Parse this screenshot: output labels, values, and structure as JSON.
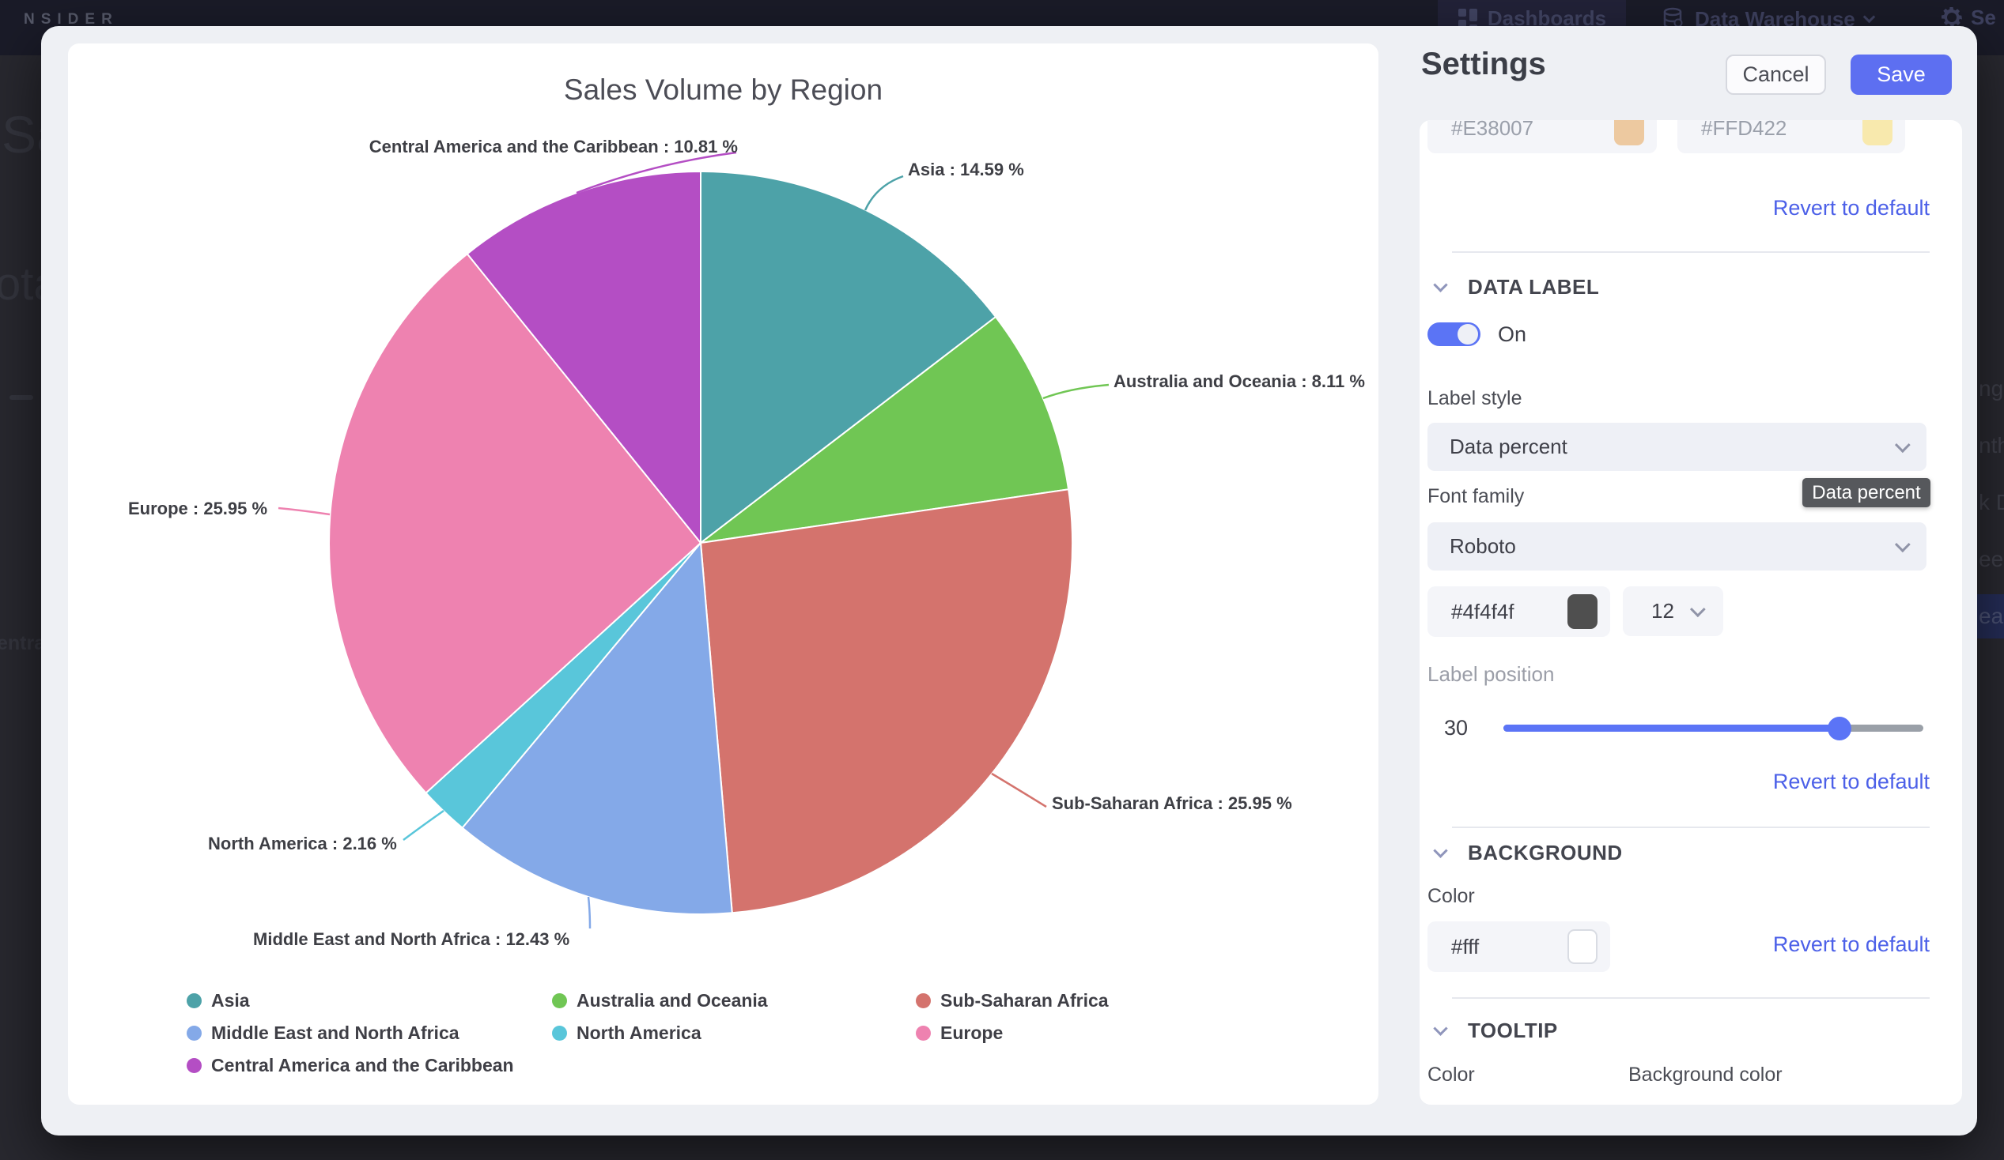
{
  "nav": {
    "logo": "NSIDER",
    "dashboards_label": "Dashboards",
    "data_warehouse_label": "Data Warehouse",
    "settings_label": "Se"
  },
  "background_fragments": {
    "left_heading": "Sale",
    "left_subheading": "ota",
    "left_legend": "entral",
    "right_rows": [
      "nge",
      "nth",
      "k D",
      "eek",
      "ear"
    ]
  },
  "chart_data": {
    "type": "pie",
    "title": "Sales Volume by Region",
    "labels": [
      "Asia",
      "Australia and Oceania",
      "Sub-Saharan Africa",
      "Middle East and North Africa",
      "North America",
      "Europe",
      "Central America and the Caribbean"
    ],
    "values": [
      14.59,
      8.11,
      25.95,
      12.43,
      2.16,
      25.95,
      10.81
    ],
    "colors": [
      "#4da2a8",
      "#70c654",
      "#d4736d",
      "#84a9e8",
      "#59c6da",
      "#ee82b0",
      "#b44ec4"
    ],
    "label_format": "{name} : {value} %",
    "legend_position": "bottom",
    "start_angle_deg": 0,
    "direction": "clockwise"
  },
  "settings": {
    "title": "Settings",
    "cancel_label": "Cancel",
    "save_label": "Save",
    "series_colors": {
      "color1_value": "#E38007",
      "color2_value": "#FFD422",
      "swatch1": "#edc9a0",
      "swatch2": "#f8e9ad",
      "revert_label": "Revert to default"
    },
    "data_label": {
      "section_title": "DATA LABEL",
      "toggle_state": "On",
      "label_style_label": "Label style",
      "label_style_value": "Data percent",
      "style_tooltip": "Data percent",
      "font_family_label": "Font family",
      "font_family_value": "Roboto",
      "font_color_value": "#4f4f4f",
      "font_size_value": "12",
      "label_position_label": "Label position",
      "label_position_value": "30",
      "revert_label": "Revert to default"
    },
    "background": {
      "section_title": "BACKGROUND",
      "color_label": "Color",
      "color_value": "#fff",
      "revert_label": "Revert to default"
    },
    "tooltip": {
      "section_title": "TOOLTIP",
      "color_label": "Color",
      "background_color_label": "Background color"
    }
  },
  "ui_colors": {
    "accent": "#5d6ff1",
    "link": "#4c60e8",
    "toggle": "#5b74f5",
    "tooltip_bg": "#56585c"
  }
}
